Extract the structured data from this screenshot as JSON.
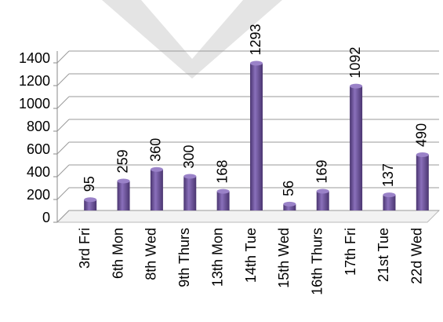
{
  "chart_data": {
    "type": "bar",
    "categories": [
      "3rd Fri",
      "6th Mon",
      "8th Wed",
      "9th Thurs",
      "13th Mon",
      "14th Tue",
      "15th Wed",
      "16th Thurs",
      "17th Fri",
      "21st Tue",
      "22d Wed"
    ],
    "values": [
      95,
      259,
      360,
      300,
      168,
      1293,
      56,
      169,
      1092,
      137,
      490
    ],
    "color": "#6a4f9a",
    "ylim": [
      0,
      1400
    ],
    "yticks": [
      0,
      200,
      400,
      600,
      800,
      1000,
      1200,
      1400
    ],
    "grid": true
  }
}
